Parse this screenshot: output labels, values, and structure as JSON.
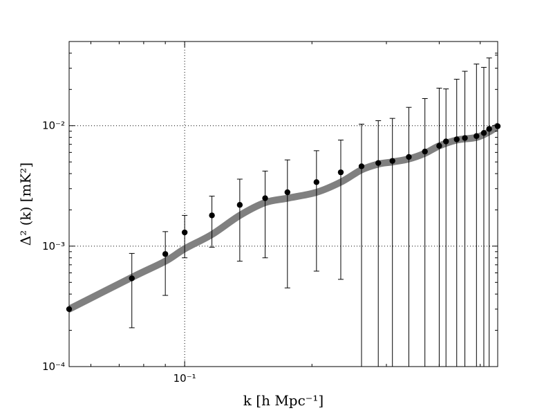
{
  "chart_data": {
    "type": "line",
    "x_scale": "log",
    "y_scale": "log",
    "xlim": [
      0.0533,
      0.55
    ],
    "ylim": [
      0.0001,
      0.05
    ],
    "grid": true,
    "xlabel": "k [h Mpc⁻¹]",
    "ylabel": "Δ² (k) [mK²]",
    "x_ticks": [
      {
        "value": 0.1,
        "label": "10⁻¹"
      }
    ],
    "y_ticks": [
      {
        "value": 0.0001,
        "label": "10⁻⁴"
      },
      {
        "value": 0.001,
        "label": "10⁻³"
      },
      {
        "value": 0.01,
        "label": "10⁻²"
      }
    ],
    "colors": {
      "model_line": "#808080",
      "points": "#000000",
      "grid": "#000000"
    },
    "model_curve": {
      "x": [
        0.0533,
        0.075,
        0.09,
        0.1,
        0.116,
        0.135,
        0.155,
        0.175,
        0.205,
        0.234,
        0.262,
        0.287,
        0.31,
        0.339,
        0.37,
        0.4,
        0.44,
        0.49,
        0.525,
        0.55
      ],
      "y": [
        0.0003,
        0.00055,
        0.00075,
        0.00095,
        0.00125,
        0.0018,
        0.0023,
        0.0025,
        0.0028,
        0.0034,
        0.0043,
        0.0048,
        0.005,
        0.0053,
        0.0059,
        0.0068,
        0.0076,
        0.008,
        0.0089,
        0.0099
      ]
    },
    "points": [
      {
        "x": 0.0533,
        "y": 0.0003,
        "lo": null,
        "hi": null
      },
      {
        "x": 0.075,
        "y": 0.00054,
        "lo": 0.00021,
        "hi": 0.00087
      },
      {
        "x": 0.09,
        "y": 0.00086,
        "lo": 0.00039,
        "hi": 0.00132
      },
      {
        "x": 0.1,
        "y": 0.0013,
        "lo": 0.0008,
        "hi": 0.0018
      },
      {
        "x": 0.116,
        "y": 0.0018,
        "lo": 0.00098,
        "hi": 0.0026
      },
      {
        "x": 0.135,
        "y": 0.0022,
        "lo": 0.00075,
        "hi": 0.0036
      },
      {
        "x": 0.155,
        "y": 0.0025,
        "lo": 0.0008,
        "hi": 0.0042
      },
      {
        "x": 0.175,
        "y": 0.0028,
        "lo": 0.00045,
        "hi": 0.0052
      },
      {
        "x": 0.205,
        "y": 0.0034,
        "lo": 0.00062,
        "hi": 0.0062
      },
      {
        "x": 0.234,
        "y": 0.0041,
        "lo": 0.00053,
        "hi": 0.0076
      },
      {
        "x": 0.262,
        "y": 0.0046,
        "lo": 0.0001,
        "hi": 0.0103
      },
      {
        "x": 0.287,
        "y": 0.0049,
        "lo": 0.0001,
        "hi": 0.011
      },
      {
        "x": 0.31,
        "y": 0.0051,
        "lo": 0.0001,
        "hi": 0.0115
      },
      {
        "x": 0.339,
        "y": 0.0055,
        "lo": 0.0001,
        "hi": 0.0142
      },
      {
        "x": 0.37,
        "y": 0.0061,
        "lo": 0.0001,
        "hi": 0.0168
      },
      {
        "x": 0.4,
        "y": 0.0068,
        "lo": 0.0001,
        "hi": 0.0205
      },
      {
        "x": 0.415,
        "y": 0.0074,
        "lo": 0.0001,
        "hi": 0.0202
      },
      {
        "x": 0.44,
        "y": 0.0077,
        "lo": 0.0001,
        "hi": 0.0243
      },
      {
        "x": 0.46,
        "y": 0.0079,
        "lo": 0.0001,
        "hi": 0.0283
      },
      {
        "x": 0.49,
        "y": 0.0082,
        "lo": 0.0001,
        "hi": 0.0325
      },
      {
        "x": 0.51,
        "y": 0.0087,
        "lo": 0.0001,
        "hi": 0.0305
      },
      {
        "x": 0.525,
        "y": 0.0094,
        "lo": 0.0001,
        "hi": 0.0365
      },
      {
        "x": 0.55,
        "y": 0.0099,
        "lo": 0.0001,
        "hi": 0.0385
      }
    ]
  }
}
